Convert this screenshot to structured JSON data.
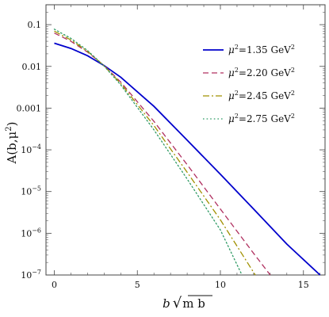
{
  "chart_data": {
    "type": "line",
    "title": "",
    "xlabel": "b √mb",
    "ylabel": "A(b,μ²)",
    "xlim": [
      -0.5,
      16.3
    ],
    "ylim": [
      1e-07,
      0.3
    ],
    "yscale": "log",
    "grid": false,
    "legend_position": "top-right",
    "x_ticks": [
      0,
      5,
      10,
      15
    ],
    "x_tick_labels": [
      "0",
      "5",
      "10",
      "15"
    ],
    "y_ticks": [
      0.1,
      0.01,
      0.001,
      0.0001,
      1e-05,
      1e-06,
      1e-07
    ],
    "y_tick_labels": [
      {
        "base": "0.1",
        "exp": ""
      },
      {
        "base": "0.01",
        "exp": ""
      },
      {
        "base": "0.001",
        "exp": ""
      },
      {
        "base": "10",
        "exp": "−4"
      },
      {
        "base": "10",
        "exp": "−5"
      },
      {
        "base": "10",
        "exp": "−6"
      },
      {
        "base": "10",
        "exp": "−7"
      }
    ],
    "series": [
      {
        "name": "μ² = 1.35 GeV²",
        "color": "#0000cc",
        "dash": "solid",
        "x": [
          0,
          1,
          2,
          3,
          4,
          6,
          8,
          10,
          12,
          14,
          16
        ],
        "y": [
          0.036,
          0.027,
          0.018,
          0.0105,
          0.0055,
          0.0011,
          0.00017,
          2.6e-05,
          3.8e-06,
          5.5e-07,
          1e-07
        ]
      },
      {
        "name": "μ² = 2.20 GeV²",
        "color": "#b03060",
        "dash": "dashed",
        "x": [
          0,
          1,
          2,
          3,
          4,
          6,
          8,
          10,
          12,
          13
        ],
        "y": [
          0.063,
          0.04,
          0.022,
          0.0105,
          0.0042,
          0.00048,
          4.4e-05,
          3.8e-06,
          3.3e-07,
          1e-07
        ]
      },
      {
        "name": "μ² = 2.45 GeV²",
        "color": "#a09000",
        "dash": "dashdot",
        "x": [
          0,
          1,
          2,
          3,
          4,
          6,
          8,
          10,
          12.1
        ],
        "y": [
          0.07,
          0.043,
          0.023,
          0.0103,
          0.0039,
          0.00038,
          2.9e-05,
          2.1e-06,
          1e-07
        ]
      },
      {
        "name": "μ² = 2.75 GeV²",
        "color": "#2e9a64",
        "dash": "dotted",
        "x": [
          0,
          1,
          2,
          3,
          4,
          6,
          8,
          10,
          11.3
        ],
        "y": [
          0.078,
          0.047,
          0.024,
          0.0102,
          0.0036,
          0.0003,
          2e-05,
          1.2e-06,
          1e-07
        ]
      }
    ],
    "legend_entries": [
      {
        "mu": "μ",
        "sup": "2",
        "value": "=1.35 GeV",
        "unit_sup": "2"
      },
      {
        "mu": "μ",
        "sup": "2",
        "value": "=2.20 GeV",
        "unit_sup": "2"
      },
      {
        "mu": "μ",
        "sup": "2",
        "value": "=2.45 GeV",
        "unit_sup": "2"
      },
      {
        "mu": "μ",
        "sup": "2",
        "value": "=2.75 GeV",
        "unit_sup": "2"
      }
    ],
    "xlabel_parts": {
      "var": "b",
      "root": "√",
      "under": "m b"
    },
    "ylabel_parts": {
      "pre": "A(b,μ",
      "sup": "2",
      "post": ")"
    }
  }
}
